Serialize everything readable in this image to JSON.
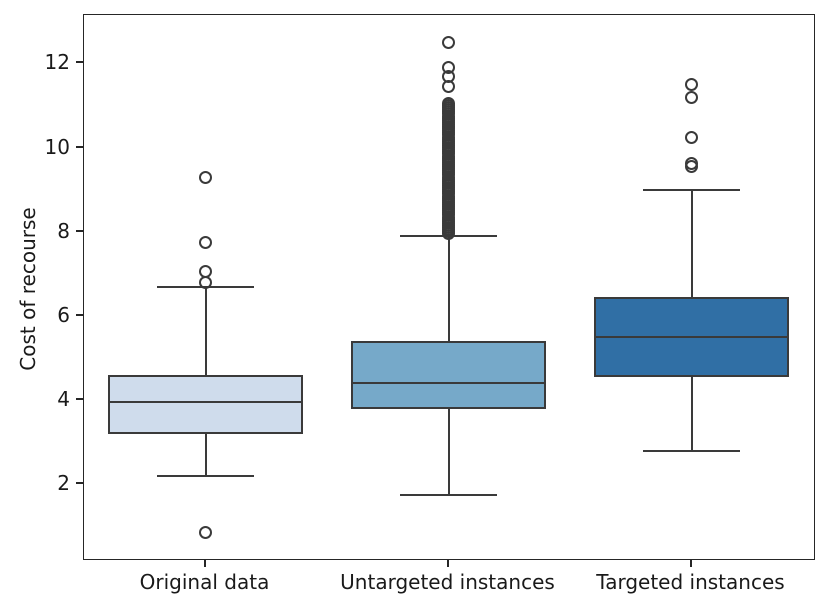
{
  "figure": {
    "background": "#ffffff",
    "frame_color": "#262626",
    "element_color": "#3a3a3a"
  },
  "chart_data": {
    "type": "boxplot",
    "title": "",
    "xlabel": "",
    "ylabel": "Cost of recourse",
    "categories": [
      "Original data",
      "Untargeted instances",
      "Targeted instances"
    ],
    "yticks": [
      2,
      4,
      6,
      8,
      10,
      12
    ],
    "ylim": [
      0.25,
      13.15
    ],
    "grid": false,
    "legend": null,
    "box_width_fraction": 0.268,
    "series": [
      {
        "name": "Original data",
        "fill": "#cfdcec",
        "whisker_low": 2.2,
        "q1": 3.2,
        "median": 3.95,
        "q3": 4.6,
        "whisker_high": 6.7,
        "outliers": [
          0.85,
          6.8,
          7.05,
          7.75,
          9.3
        ]
      },
      {
        "name": "Untargeted instances",
        "fill": "#76a9c9",
        "whisker_low": 1.75,
        "q1": 3.8,
        "median": 4.4,
        "q3": 5.4,
        "whisker_high": 7.9,
        "outliers": [
          7.95,
          8.0,
          8.05,
          8.1,
          8.15,
          8.2,
          8.25,
          8.3,
          8.35,
          8.4,
          8.45,
          8.5,
          8.55,
          8.6,
          8.65,
          8.7,
          8.75,
          8.8,
          8.85,
          8.9,
          8.95,
          9.0,
          9.05,
          9.1,
          9.15,
          9.2,
          9.25,
          9.3,
          9.35,
          9.4,
          9.45,
          9.5,
          9.55,
          9.6,
          9.65,
          9.7,
          9.75,
          9.8,
          9.85,
          9.9,
          9.95,
          10.0,
          10.05,
          10.1,
          10.15,
          10.2,
          10.25,
          10.3,
          10.35,
          10.4,
          10.45,
          10.5,
          10.55,
          10.6,
          10.65,
          10.7,
          10.75,
          10.8,
          10.85,
          10.9,
          10.95,
          11.0,
          11.05,
          11.45,
          11.7,
          11.9,
          12.5
        ]
      },
      {
        "name": "Targeted instances",
        "fill": "#306fa5",
        "whisker_low": 2.8,
        "q1": 4.55,
        "median": 5.5,
        "q3": 6.45,
        "whisker_high": 9.0,
        "outliers": [
          9.55,
          9.62,
          10.25,
          11.2,
          11.5
        ]
      }
    ]
  }
}
